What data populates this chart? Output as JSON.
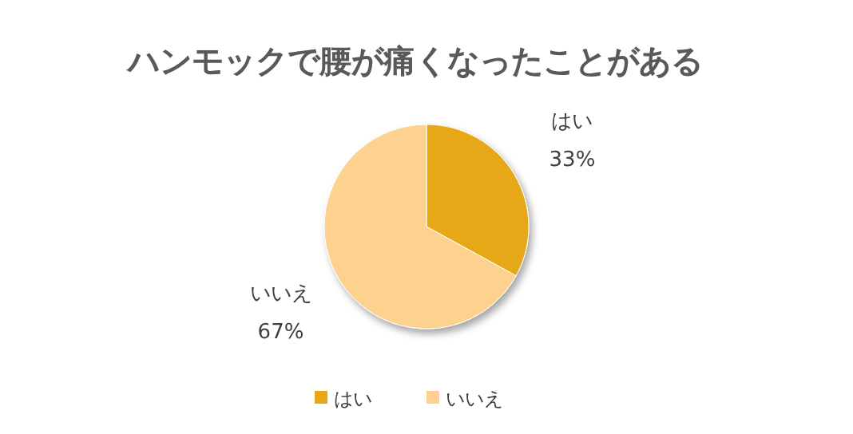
{
  "chart_data": {
    "type": "pie",
    "title": "ハンモックで腰が痛くなったことがある",
    "categories": [
      "はい",
      "いいえ"
    ],
    "values": [
      33,
      67
    ],
    "colors": [
      "#e6a817",
      "#fdd28e"
    ],
    "value_labels": [
      "33%",
      "67%"
    ],
    "legend": "bottom"
  }
}
